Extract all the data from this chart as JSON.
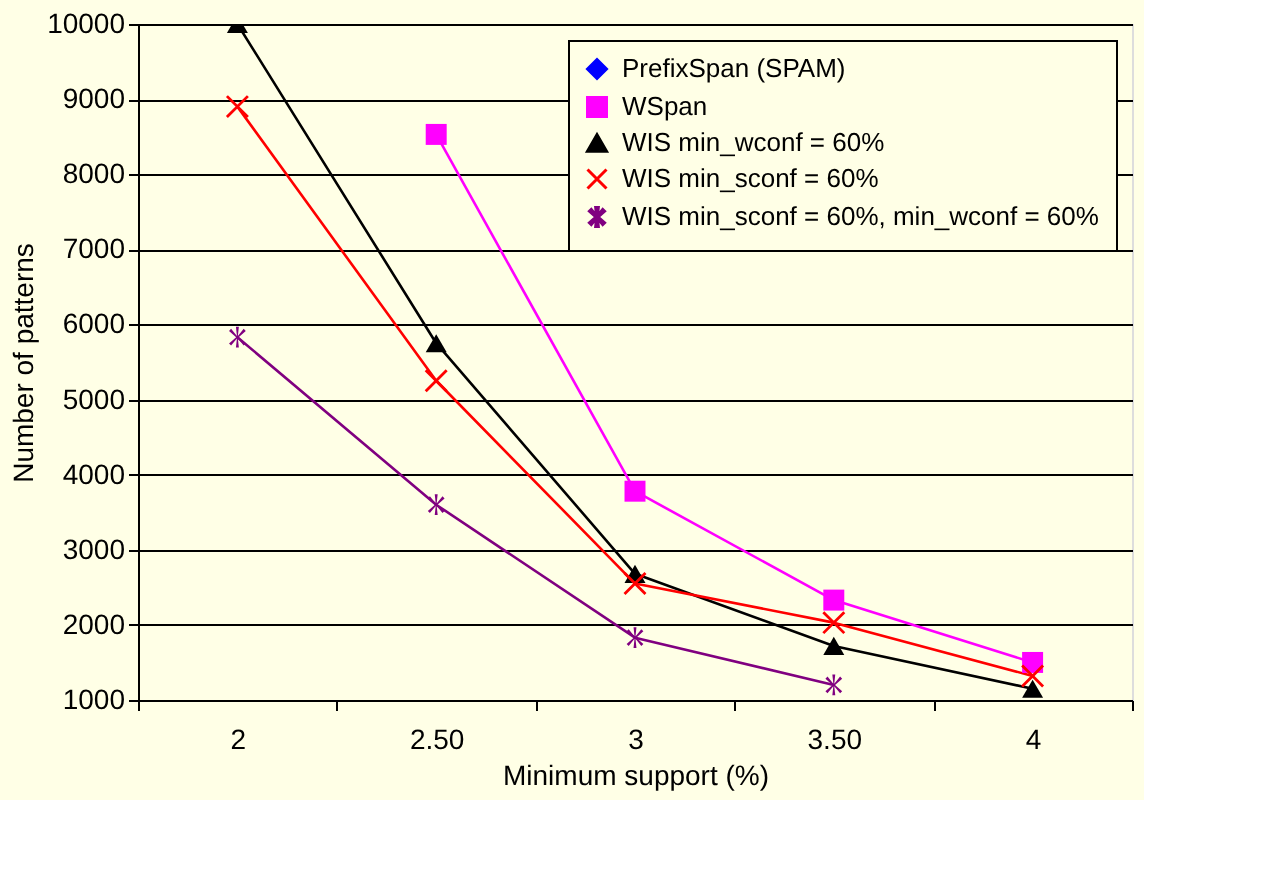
{
  "chart_data": {
    "type": "line",
    "xlabel": "Minimum support (%)",
    "ylabel": "Number of patterns",
    "categories": [
      "2",
      "2.50",
      "3",
      "3.50",
      "4"
    ],
    "ylim": [
      1000,
      10000
    ],
    "yticks": [
      1000,
      2000,
      3000,
      4000,
      5000,
      6000,
      7000,
      8000,
      9000,
      10000
    ],
    "grid": "y",
    "legend": "top right",
    "series": [
      {
        "name": "PrefixSpan (SPAM)",
        "color": "#0000ff",
        "marker": "diamond",
        "values": [
          null,
          null,
          null,
          null,
          null
        ]
      },
      {
        "name": "WSpan",
        "color": "#ff00ff",
        "marker": "square",
        "values": [
          null,
          8530,
          3780,
          2330,
          1500
        ]
      },
      {
        "name": "WIS min_wconf = 60%",
        "color": "#000000",
        "marker": "triangle",
        "values": [
          10000,
          5750,
          2680,
          1720,
          1150
        ]
      },
      {
        "name": "WIS min_sconf = 60%",
        "color": "#ff0000",
        "marker": "cross",
        "values": [
          8900,
          5250,
          2550,
          2030,
          1320
        ]
      },
      {
        "name": "WIS min_sconf = 60%, min_wconf = 60%",
        "color": "#800080",
        "marker": "star",
        "values": [
          5830,
          3600,
          1830,
          1200,
          null
        ]
      }
    ]
  }
}
